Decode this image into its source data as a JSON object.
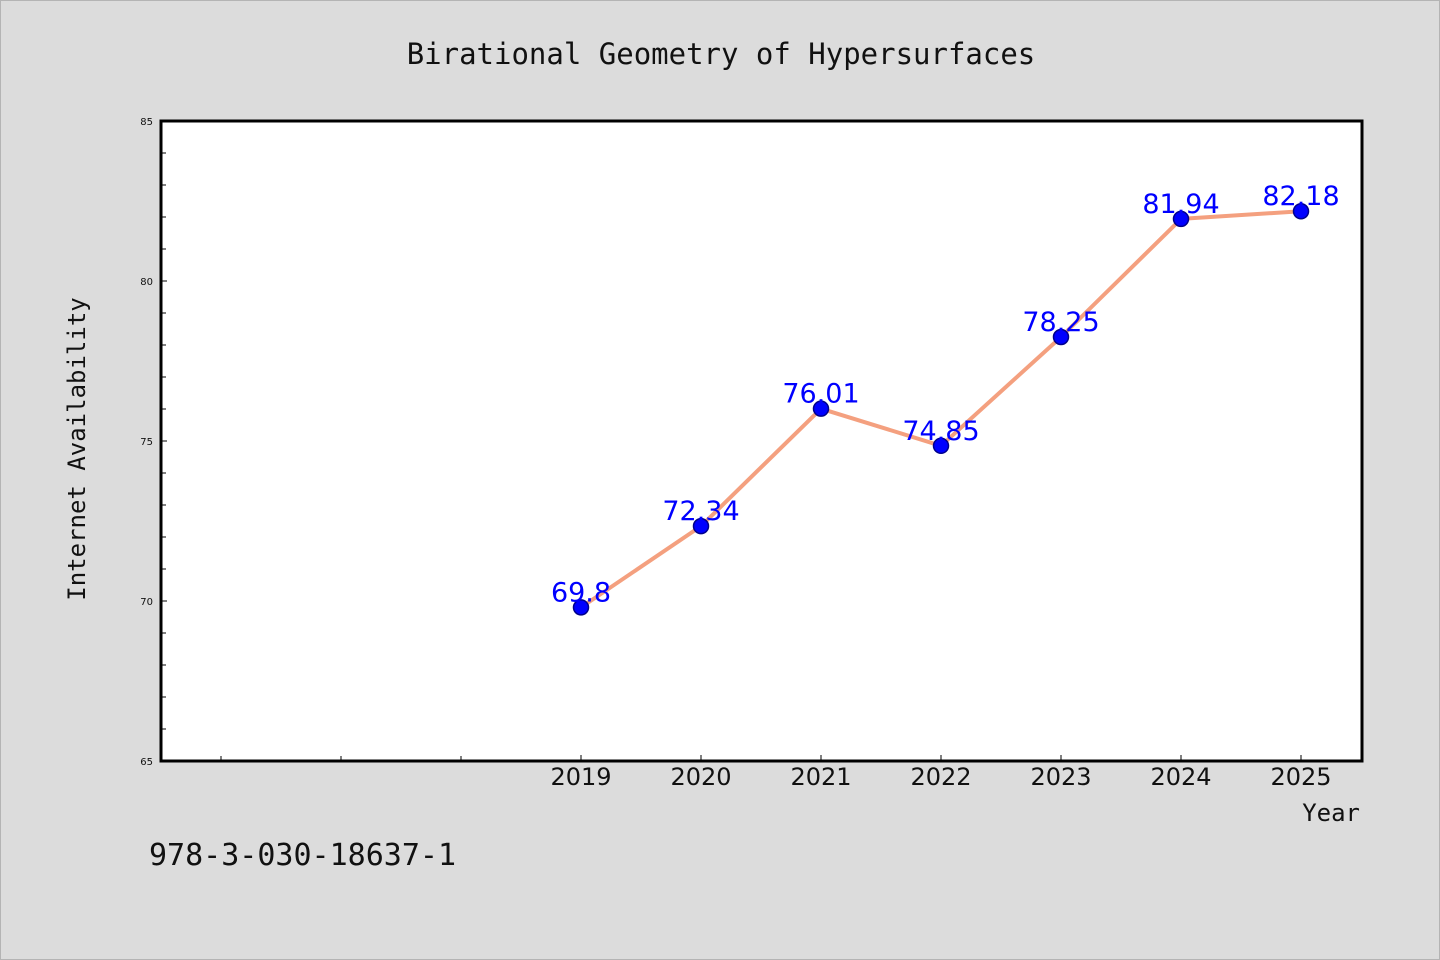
{
  "chart_data": {
    "type": "line",
    "title": "Birational Geometry of Hypersurfaces",
    "xlabel": "Year",
    "ylabel": "Internet Availability",
    "x": [
      "2019",
      "2020",
      "2021",
      "2022",
      "2023",
      "2024",
      "2025"
    ],
    "series": [
      {
        "values": [
          69.8,
          72.34,
          76.01,
          74.85,
          78.25,
          81.94,
          82.18
        ],
        "labels": [
          "69.8",
          "72.34",
          "76.01",
          "74.85",
          "78.25",
          "81.94",
          "82.18"
        ]
      }
    ],
    "ylim": [
      65,
      85
    ],
    "y_ticks": [
      "65",
      "70",
      "75",
      "80",
      "85"
    ],
    "grid": false,
    "legend": "none",
    "colors": {
      "line": "#f4a07f",
      "marker": "#0000ff",
      "marker_edge": "#00008b",
      "data_label": "#0000ff",
      "background": "#dcdcdc",
      "plot_area": "#ffffff"
    }
  },
  "footnote": "978-3-030-18637-1"
}
